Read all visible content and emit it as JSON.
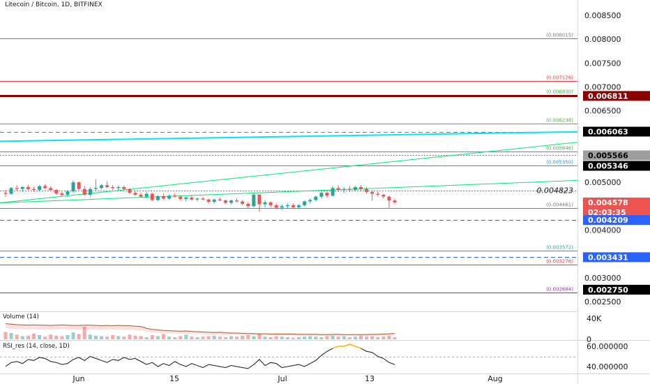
{
  "header": {
    "title": "Litecoin / Bitcoin, 1D, BITFINEX"
  },
  "volume_panel": {
    "title": "Volume (14)"
  },
  "rsi_panel": {
    "title": "RSI_res (14, close, 1D)"
  },
  "colors": {
    "up": "#26a69a",
    "down": "#ef5350",
    "fib_green": "#4caf50",
    "fib_red": "#f23645",
    "trend": "#00e676",
    "channel": "#00e5ff",
    "dash_blue": "#2962ff"
  },
  "chart_data": {
    "type": "candlestick",
    "symbol": "Litecoin / Bitcoin",
    "interval": "1D",
    "exchange": "BITFINEX",
    "ylim": [
      0.0023,
      0.0087
    ],
    "price_axis": {
      "ticks": [
        "0.008500",
        "0.008000",
        "0.007500",
        "0.007000",
        "0.006500",
        "0.005000",
        "0.004000",
        "0.003000",
        "0.002500"
      ],
      "tick_values": [
        0.0085,
        0.008,
        0.0075,
        0.007,
        0.0065,
        0.005,
        0.004,
        0.003,
        0.0025
      ]
    },
    "time_axis": {
      "labels": [
        "Jun",
        "15",
        "Jul",
        "13",
        "Aug"
      ]
    },
    "horizontal_levels": [
      {
        "label": "(0.008015)",
        "value": 0.008015,
        "color": "#787b86",
        "width": 1,
        "style": "solid",
        "show": true
      },
      {
        "label": "(0.007126)",
        "value": 0.007126,
        "color": "#f23645",
        "width": 1,
        "style": "solid",
        "show": true
      },
      {
        "label": "(0.006830)",
        "value": 0.00683,
        "color": "#4caf50",
        "width": 1,
        "style": "solid",
        "show": true
      },
      {
        "label": "",
        "value": 0.006811,
        "color": "#8b0000",
        "width": 3,
        "style": "solid",
        "show": false
      },
      {
        "label": "(0.006238)",
        "value": 0.006238,
        "color": "#4caf50",
        "width": 1,
        "style": "solid",
        "show": true
      },
      {
        "label": "",
        "value": 0.006063,
        "color": "#787b86",
        "width": 1,
        "style": "dashed",
        "show": false
      },
      {
        "label": "(0.005646)",
        "value": 0.005646,
        "color": "#4caf50",
        "width": 1,
        "style": "solid",
        "show": true
      },
      {
        "label": "",
        "value": 0.005566,
        "color": "#787b86",
        "width": 1,
        "style": "dotted",
        "show": false
      },
      {
        "label": "(0.005350)",
        "value": 0.00535,
        "color": "#2196f3",
        "width": 1,
        "style": "solid",
        "show": true
      },
      {
        "label": "",
        "value": 0.004823,
        "color": "#787b86",
        "width": 1,
        "style": "dotted",
        "show": false
      },
      {
        "label": "(0.004461)",
        "value": 0.004461,
        "color": "#787b86",
        "width": 1,
        "style": "solid",
        "show": true
      },
      {
        "label": "",
        "value": 0.004209,
        "color": "#2962ff",
        "width": 1,
        "style": "dashed",
        "show": false
      },
      {
        "label": "(0.003572)",
        "value": 0.003572,
        "color": "#26a69a",
        "width": 1,
        "style": "solid",
        "show": true
      },
      {
        "label": "",
        "value": 0.003431,
        "color": "#2962ff",
        "width": 1,
        "style": "dashed",
        "show": false
      },
      {
        "label": "(0.003276)",
        "value": 0.003276,
        "color": "#f23645",
        "width": 1,
        "style": "solid",
        "show": true
      },
      {
        "label": "(0.002684)",
        "value": 0.002684,
        "color": "#9c27b0",
        "width": 1,
        "style": "solid",
        "show": true
      }
    ],
    "price_text_annotation": "0.004823",
    "price_badges": [
      {
        "text": "0.006811",
        "value": 0.006811,
        "bg": "#8b0000",
        "fg": "#ffffff"
      },
      {
        "text": "0.006063",
        "value": 0.006063,
        "bg": "#000000",
        "fg": "#ffffff"
      },
      {
        "text": "0.005566",
        "value": 0.005566,
        "bg": "#9e9e9e",
        "fg": "#000000"
      },
      {
        "text": "0.005346",
        "value": 0.005346,
        "bg": "#000000",
        "fg": "#ffffff"
      },
      {
        "text": "0.004578",
        "value": 0.004578,
        "bg": "#ef5350",
        "fg": "#ffffff"
      },
      {
        "text": "02:03:35",
        "value": 0.00448,
        "bg": "#ef5350",
        "fg": "#ffffff"
      },
      {
        "text": "0.004209",
        "value": 0.004209,
        "bg": "#2962ff",
        "fg": "#ffffff"
      },
      {
        "text": "0.003431",
        "value": 0.003431,
        "bg": "#2962ff",
        "fg": "#ffffff"
      },
      {
        "text": "0.002750",
        "value": 0.00275,
        "bg": "#000000",
        "fg": "#ffffff"
      }
    ],
    "candles": [
      {
        "o": 0.00478,
        "h": 0.00484,
        "l": 0.0047,
        "c": 0.00476
      },
      {
        "o": 0.00476,
        "h": 0.0049,
        "l": 0.00474,
        "c": 0.00488
      },
      {
        "o": 0.00488,
        "h": 0.00494,
        "l": 0.00482,
        "c": 0.00486
      },
      {
        "o": 0.00486,
        "h": 0.00492,
        "l": 0.0048,
        "c": 0.0049
      },
      {
        "o": 0.0049,
        "h": 0.00495,
        "l": 0.00484,
        "c": 0.00486
      },
      {
        "o": 0.00486,
        "h": 0.00491,
        "l": 0.0048,
        "c": 0.00484
      },
      {
        "o": 0.00484,
        "h": 0.00494,
        "l": 0.00482,
        "c": 0.00492
      },
      {
        "o": 0.00492,
        "h": 0.00496,
        "l": 0.00486,
        "c": 0.00488
      },
      {
        "o": 0.00488,
        "h": 0.00492,
        "l": 0.00482,
        "c": 0.00484
      },
      {
        "o": 0.00484,
        "h": 0.00486,
        "l": 0.00474,
        "c": 0.00477
      },
      {
        "o": 0.00477,
        "h": 0.0048,
        "l": 0.0047,
        "c": 0.00474
      },
      {
        "o": 0.00474,
        "h": 0.00484,
        "l": 0.0047,
        "c": 0.00481
      },
      {
        "o": 0.00481,
        "h": 0.00504,
        "l": 0.00478,
        "c": 0.005
      },
      {
        "o": 0.005,
        "h": 0.00502,
        "l": 0.00484,
        "c": 0.00486
      },
      {
        "o": 0.00486,
        "h": 0.00492,
        "l": 0.00472,
        "c": 0.00474
      },
      {
        "o": 0.00474,
        "h": 0.0049,
        "l": 0.0047,
        "c": 0.00486
      },
      {
        "o": 0.00486,
        "h": 0.00506,
        "l": 0.00482,
        "c": 0.00488
      },
      {
        "o": 0.00488,
        "h": 0.00496,
        "l": 0.00486,
        "c": 0.00494
      },
      {
        "o": 0.00494,
        "h": 0.00502,
        "l": 0.00488,
        "c": 0.0049
      },
      {
        "o": 0.0049,
        "h": 0.00494,
        "l": 0.00484,
        "c": 0.00488
      },
      {
        "o": 0.00488,
        "h": 0.00494,
        "l": 0.00484,
        "c": 0.0049
      },
      {
        "o": 0.0049,
        "h": 0.00493,
        "l": 0.00484,
        "c": 0.00486
      },
      {
        "o": 0.00486,
        "h": 0.00488,
        "l": 0.00476,
        "c": 0.00478
      },
      {
        "o": 0.00478,
        "h": 0.00481,
        "l": 0.00472,
        "c": 0.00474
      },
      {
        "o": 0.00474,
        "h": 0.00478,
        "l": 0.00468,
        "c": 0.0047
      },
      {
        "o": 0.0047,
        "h": 0.0048,
        "l": 0.00466,
        "c": 0.00476
      },
      {
        "o": 0.00476,
        "h": 0.00478,
        "l": 0.0046,
        "c": 0.00463
      },
      {
        "o": 0.00463,
        "h": 0.00474,
        "l": 0.0046,
        "c": 0.00471
      },
      {
        "o": 0.00471,
        "h": 0.00476,
        "l": 0.00464,
        "c": 0.00466
      },
      {
        "o": 0.00466,
        "h": 0.00474,
        "l": 0.00464,
        "c": 0.00472
      },
      {
        "o": 0.00472,
        "h": 0.00476,
        "l": 0.00468,
        "c": 0.0047
      },
      {
        "o": 0.0047,
        "h": 0.00472,
        "l": 0.00462,
        "c": 0.00465
      },
      {
        "o": 0.00465,
        "h": 0.0047,
        "l": 0.0046,
        "c": 0.00468
      },
      {
        "o": 0.00468,
        "h": 0.00472,
        "l": 0.00462,
        "c": 0.00464
      },
      {
        "o": 0.00464,
        "h": 0.00468,
        "l": 0.0046,
        "c": 0.00466
      },
      {
        "o": 0.00466,
        "h": 0.0047,
        "l": 0.00462,
        "c": 0.00464
      },
      {
        "o": 0.00464,
        "h": 0.00466,
        "l": 0.00456,
        "c": 0.00459
      },
      {
        "o": 0.00459,
        "h": 0.00466,
        "l": 0.00456,
        "c": 0.00464
      },
      {
        "o": 0.00464,
        "h": 0.00468,
        "l": 0.0046,
        "c": 0.00462
      },
      {
        "o": 0.00462,
        "h": 0.00464,
        "l": 0.00454,
        "c": 0.00457
      },
      {
        "o": 0.00457,
        "h": 0.00464,
        "l": 0.00454,
        "c": 0.00462
      },
      {
        "o": 0.00462,
        "h": 0.00466,
        "l": 0.00458,
        "c": 0.0046
      },
      {
        "o": 0.0046,
        "h": 0.00463,
        "l": 0.00452,
        "c": 0.00455
      },
      {
        "o": 0.00455,
        "h": 0.00458,
        "l": 0.00446,
        "c": 0.0045
      },
      {
        "o": 0.0045,
        "h": 0.00478,
        "l": 0.00448,
        "c": 0.00474
      },
      {
        "o": 0.00474,
        "h": 0.00476,
        "l": 0.00438,
        "c": 0.00454
      },
      {
        "o": 0.00454,
        "h": 0.00462,
        "l": 0.00448,
        "c": 0.00458
      },
      {
        "o": 0.00458,
        "h": 0.0046,
        "l": 0.00448,
        "c": 0.00452
      },
      {
        "o": 0.00452,
        "h": 0.00456,
        "l": 0.00444,
        "c": 0.00447
      },
      {
        "o": 0.00447,
        "h": 0.00454,
        "l": 0.00442,
        "c": 0.0045
      },
      {
        "o": 0.0045,
        "h": 0.00456,
        "l": 0.00446,
        "c": 0.00452
      },
      {
        "o": 0.00452,
        "h": 0.00456,
        "l": 0.00446,
        "c": 0.00448
      },
      {
        "o": 0.00448,
        "h": 0.00454,
        "l": 0.00444,
        "c": 0.00452
      },
      {
        "o": 0.00452,
        "h": 0.00462,
        "l": 0.0045,
        "c": 0.0046
      },
      {
        "o": 0.0046,
        "h": 0.00466,
        "l": 0.00456,
        "c": 0.00463
      },
      {
        "o": 0.00463,
        "h": 0.00472,
        "l": 0.0046,
        "c": 0.0047
      },
      {
        "o": 0.0047,
        "h": 0.0048,
        "l": 0.00466,
        "c": 0.00478
      },
      {
        "o": 0.00478,
        "h": 0.0048,
        "l": 0.00468,
        "c": 0.00472
      },
      {
        "o": 0.00472,
        "h": 0.00492,
        "l": 0.0047,
        "c": 0.00488
      },
      {
        "o": 0.00488,
        "h": 0.00494,
        "l": 0.0048,
        "c": 0.00484
      },
      {
        "o": 0.00484,
        "h": 0.0049,
        "l": 0.00478,
        "c": 0.00486
      },
      {
        "o": 0.00486,
        "h": 0.00492,
        "l": 0.0048,
        "c": 0.00484
      },
      {
        "o": 0.00484,
        "h": 0.00492,
        "l": 0.00482,
        "c": 0.0049
      },
      {
        "o": 0.0049,
        "h": 0.00494,
        "l": 0.00482,
        "c": 0.00486
      },
      {
        "o": 0.00486,
        "h": 0.0049,
        "l": 0.00476,
        "c": 0.0048
      },
      {
        "o": 0.0048,
        "h": 0.00482,
        "l": 0.00462,
        "c": 0.00476
      },
      {
        "o": 0.00476,
        "h": 0.0048,
        "l": 0.0047,
        "c": 0.00474
      },
      {
        "o": 0.00474,
        "h": 0.00476,
        "l": 0.00466,
        "c": 0.0047
      },
      {
        "o": 0.0047,
        "h": 0.00472,
        "l": 0.00446,
        "c": 0.00462
      },
      {
        "o": 0.00462,
        "h": 0.00466,
        "l": 0.00454,
        "c": 0.00458
      }
    ],
    "volume_axis": {
      "ticks": [
        "40K",
        "0"
      ],
      "tick_values": [
        40000,
        0
      ],
      "ylim": [
        0,
        60000
      ]
    },
    "volume": [
      14000,
      12000,
      9000,
      6000,
      7000,
      11000,
      8000,
      5000,
      9000,
      7000,
      6000,
      8000,
      13000,
      10000,
      24000,
      9000,
      7000,
      6000,
      5000,
      8000,
      6000,
      5000,
      9000,
      7000,
      6000,
      4000,
      8000,
      6000,
      10000,
      5000,
      4000,
      6000,
      9000,
      5000,
      4000,
      5000,
      6000,
      7000,
      5000,
      4000,
      6000,
      5000,
      7000,
      8000,
      6000,
      10000,
      5000,
      4000,
      6000,
      5000,
      4000,
      3000,
      4000,
      5000,
      6000,
      5000,
      4000,
      6000,
      7000,
      5000,
      6000,
      4000,
      5000,
      7000,
      5000,
      6000,
      4000,
      5000,
      7000,
      4000
    ],
    "volume_ma": [
      30000,
      29000,
      28000,
      27500,
      27000,
      27500,
      27000,
      27000,
      26500,
      27000,
      27500,
      27000,
      26500,
      26500,
      27000,
      27000,
      26500,
      26000,
      26500,
      26000,
      26500,
      26000,
      26000,
      25000,
      24500,
      21000,
      19000,
      18000,
      17000,
      16500,
      16000,
      15500,
      16000,
      15000,
      14500,
      14000,
      13500,
      13000,
      13500,
      12500,
      12000,
      12000,
      11500,
      11000,
      11000,
      10500,
      10500,
      10000,
      10000,
      10000,
      10000,
      10000,
      9500,
      9500,
      9500,
      9500,
      9000,
      9000,
      9500,
      9500,
      9000,
      9000,
      9000,
      9000,
      9000,
      9500,
      9500,
      10000,
      10500,
      11000
    ],
    "rsi_axis": {
      "ticks": [
        "60.000000",
        "40.000000"
      ],
      "tick_values": [
        60,
        40
      ],
      "ylim": [
        32,
        68
      ]
    },
    "rsi": [
      40,
      44,
      45,
      43,
      47,
      46,
      49,
      48,
      45,
      44,
      42,
      43,
      47,
      49,
      46,
      50,
      48,
      46,
      44,
      47,
      46,
      49,
      47,
      48,
      45,
      42,
      44,
      40,
      43,
      41,
      45,
      42,
      40,
      43,
      41,
      39,
      42,
      41,
      40,
      39,
      41,
      40,
      39,
      38,
      42,
      47,
      41,
      44,
      43,
      39,
      40,
      41,
      42,
      40,
      43,
      46,
      51,
      55,
      58,
      60,
      60,
      62,
      60,
      58,
      55,
      54,
      50,
      48,
      44,
      42
    ]
  }
}
